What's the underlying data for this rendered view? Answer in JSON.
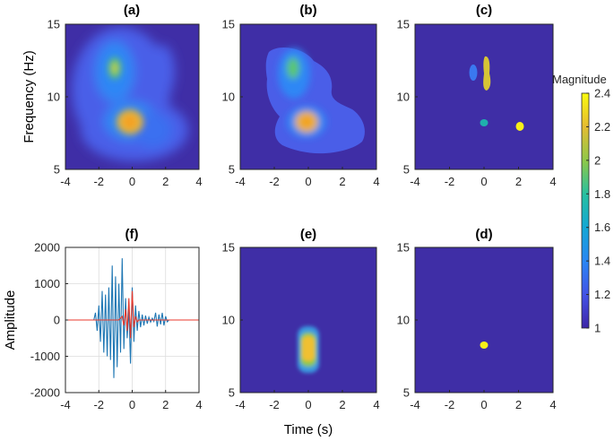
{
  "chart_data": [
    {
      "type": "heatmap",
      "panel": "a",
      "title": "(a)",
      "xlabel": "",
      "ylabel": "Frequency  (Hz)",
      "xlim": [
        -4,
        4
      ],
      "ylim": [
        5,
        15
      ],
      "xticks": [
        "-4",
        "-2",
        "0",
        "2",
        "4"
      ],
      "yticks": [
        "5",
        "10",
        "15"
      ],
      "peaks": [
        {
          "t": -1.2,
          "f": 11.8,
          "magnitude": 2.1
        },
        {
          "t": -0.2,
          "f": 8.0,
          "magnitude": 2.4
        },
        {
          "t": -0.1,
          "f": 12.0,
          "magnitude": 1.6
        },
        {
          "t": 1.9,
          "f": 8.0,
          "magnitude": 1.45
        }
      ]
    },
    {
      "type": "heatmap",
      "panel": "b",
      "title": "(b)",
      "xlabel": "",
      "ylabel": "",
      "xlim": [
        -4,
        4
      ],
      "ylim": [
        5,
        15
      ],
      "xticks": [
        "-4",
        "-2",
        "0",
        "2",
        "4"
      ],
      "yticks": [
        "5",
        "10",
        "15"
      ],
      "peaks": [
        {
          "t": -1.0,
          "f": 11.8,
          "magnitude": 2.0
        },
        {
          "t": -0.2,
          "f": 8.0,
          "magnitude": 2.4
        },
        {
          "t": 1.9,
          "f": 8.0,
          "magnitude": 1.4
        }
      ]
    },
    {
      "type": "heatmap",
      "panel": "c",
      "title": "(c)",
      "xlabel": "",
      "ylabel": "",
      "xlim": [
        -4,
        4
      ],
      "ylim": [
        5,
        15
      ],
      "xticks": [
        "-4",
        "-2",
        "0",
        "2",
        "4"
      ],
      "yticks": [
        "5",
        "10",
        "15"
      ],
      "blobs": [
        {
          "t": -1.0,
          "f": 11.5,
          "magnitude": 1.3
        },
        {
          "t": 0.0,
          "f": 11.2,
          "magnitude": 2.3
        },
        {
          "t": -0.2,
          "f": 8.1,
          "magnitude": 1.6
        },
        {
          "t": 2.0,
          "f": 7.8,
          "magnitude": 2.4
        }
      ]
    },
    {
      "type": "line",
      "panel": "f",
      "title": "(f)",
      "xlabel": "",
      "ylabel": "Amplitude",
      "xlim": [
        -4,
        4
      ],
      "ylim": [
        -2000,
        2000
      ],
      "xticks": [
        "-4",
        "-2",
        "0",
        "2",
        "4"
      ],
      "yticks": [
        "-2000",
        "-1000",
        "0",
        "1000",
        "2000"
      ],
      "grid": true,
      "series": [
        {
          "color": "#1f77b4",
          "x": [
            -2.3,
            -2.2,
            -2.1,
            -2.0,
            -1.9,
            -1.8,
            -1.7,
            -1.6,
            -1.5,
            -1.4,
            -1.3,
            -1.2,
            -1.1,
            -1.0,
            -0.9,
            -0.8,
            -0.7,
            -0.6,
            -0.5,
            -0.4,
            -0.3,
            -0.2,
            -0.1,
            0.0,
            0.1,
            0.2,
            0.3,
            0.4,
            0.5,
            0.6,
            0.7,
            0.8,
            0.9,
            1.0,
            1.1,
            1.2,
            1.3,
            1.4,
            1.5,
            1.6,
            1.7,
            1.8,
            1.9,
            2.0,
            2.1,
            2.2
          ],
          "y": [
            0,
            200,
            -300,
            400,
            -600,
            800,
            -900,
            700,
            -1000,
            900,
            -1100,
            1500,
            -1600,
            1200,
            -1300,
            1000,
            -900,
            1700,
            -800,
            600,
            -500,
            300,
            -1200,
            900,
            -600,
            400,
            -300,
            250,
            -200,
            150,
            -150,
            120,
            -100,
            80,
            -60,
            50,
            -40,
            200,
            -180,
            150,
            -120,
            200,
            -150,
            100,
            -50,
            0
          ]
        },
        {
          "color": "#e8392c",
          "x": [
            -4,
            -0.8,
            -0.6,
            -0.5,
            -0.4,
            -0.3,
            -0.2,
            -0.1,
            0.0,
            0.1,
            0.2,
            0.3,
            0.4,
            4
          ],
          "y": [
            0,
            0,
            100,
            -150,
            300,
            -300,
            600,
            -500,
            800,
            -200,
            100,
            -50,
            0,
            0
          ]
        }
      ]
    },
    {
      "type": "heatmap",
      "panel": "e",
      "title": "(e)",
      "xlabel": "Time (s)",
      "ylabel": "",
      "xlim": [
        -4,
        4
      ],
      "ylim": [
        5,
        15
      ],
      "xticks": [
        "-4",
        "-2",
        "0",
        "2",
        "4"
      ],
      "yticks": [
        "5",
        "10",
        "15"
      ],
      "peaks": [
        {
          "t": -0.2,
          "f": 8.0,
          "magnitude": 2.4
        }
      ]
    },
    {
      "type": "heatmap",
      "panel": "d",
      "title": "(d)",
      "xlabel": "",
      "ylabel": "",
      "xlim": [
        -4,
        4
      ],
      "ylim": [
        5,
        15
      ],
      "xticks": [
        "-4",
        "-2",
        "0",
        "2",
        "4"
      ],
      "yticks": [
        "5",
        "10",
        "15"
      ],
      "blobs": [
        {
          "t": -0.2,
          "f": 8.1,
          "magnitude": 2.4
        }
      ]
    }
  ],
  "colorbar": {
    "label": "Magnitude",
    "range": [
      1,
      2.4
    ],
    "ticks": [
      "1",
      "1.2",
      "1.4",
      "1.6",
      "1.8",
      "2",
      "2.2",
      "2.4"
    ]
  }
}
